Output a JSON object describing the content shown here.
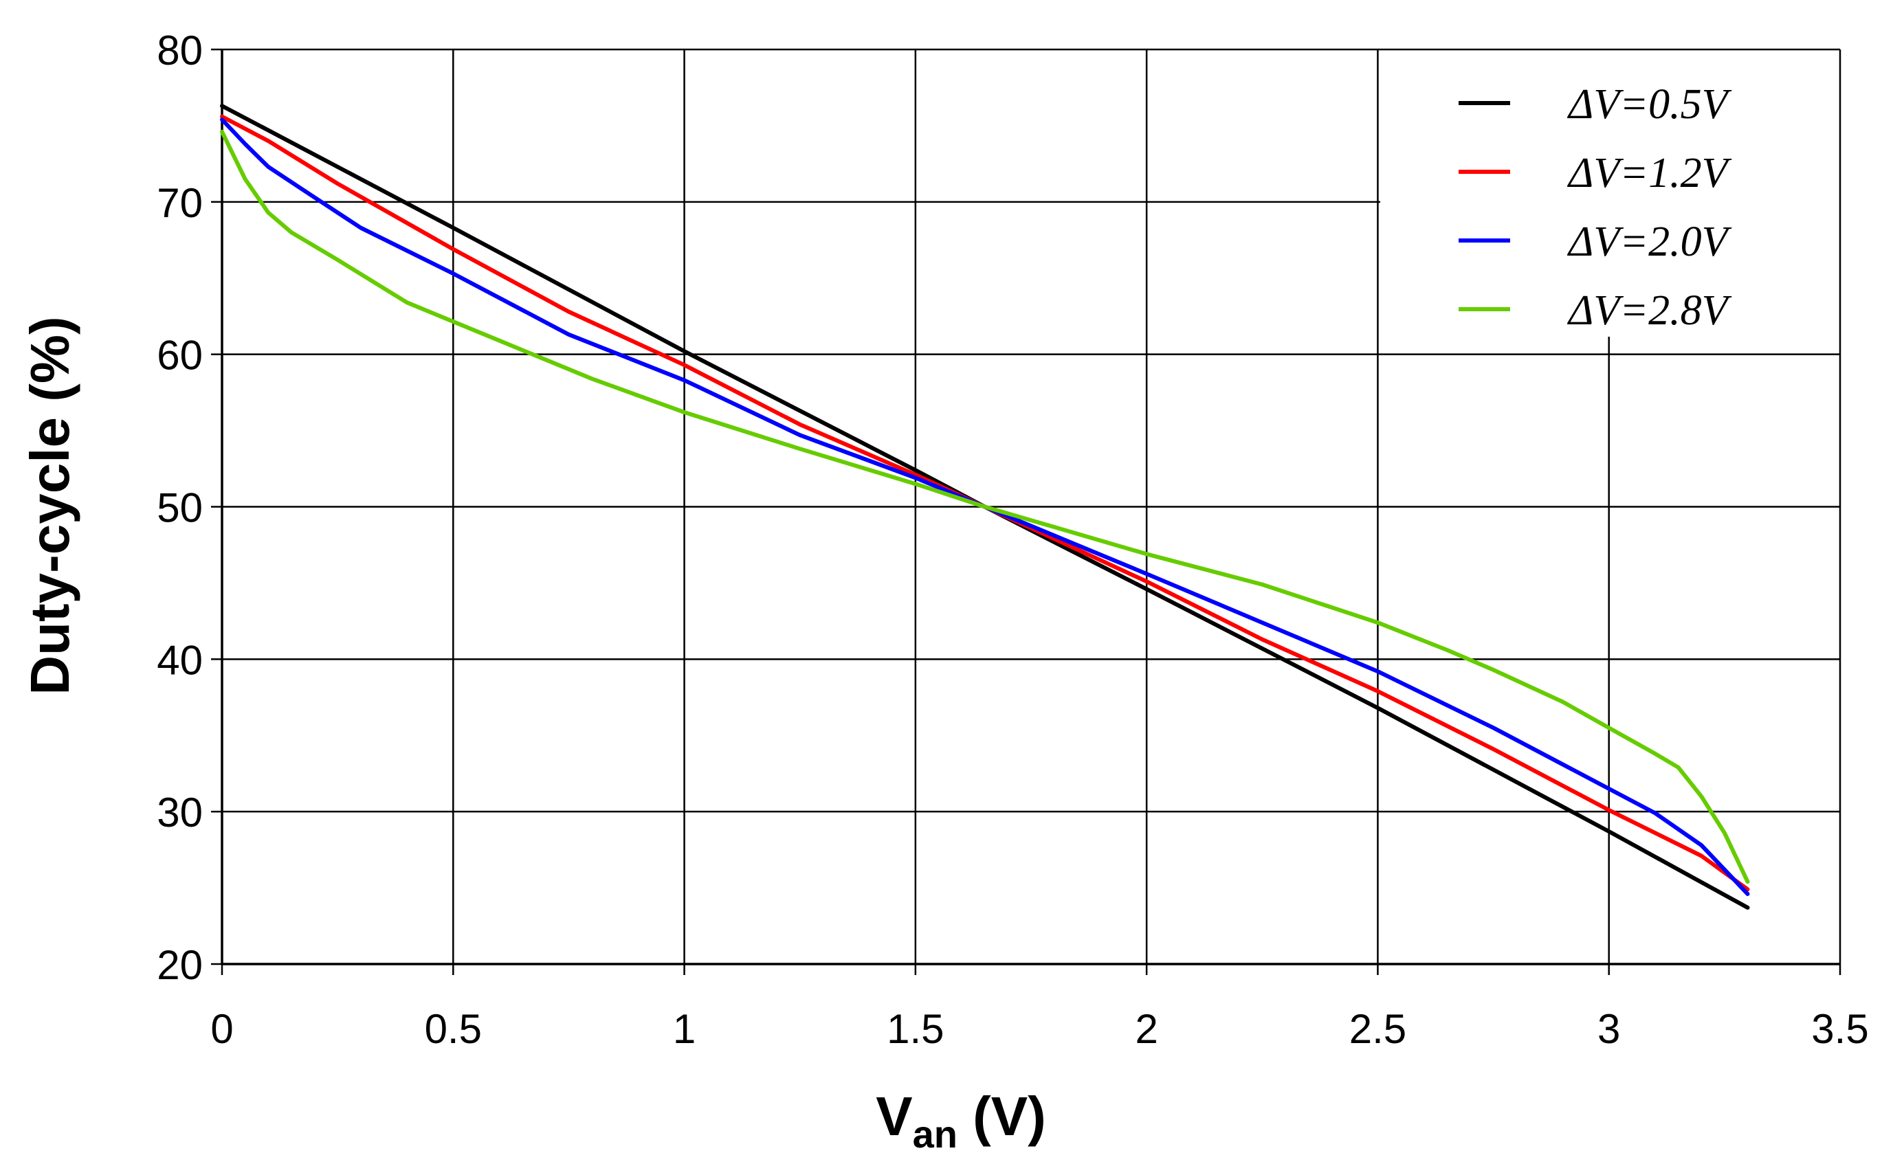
{
  "chart_data": {
    "type": "line",
    "xlabel": "V",
    "xlabel_sub": "an",
    "xlabel_unit": " (V)",
    "ylabel": "Duty-cycle (%)",
    "xlim": [
      0,
      3.5
    ],
    "ylim": [
      20,
      80
    ],
    "xticks": [
      0,
      0.5,
      1,
      1.5,
      2,
      2.5,
      3,
      3.5
    ],
    "xtick_labels": [
      "0",
      "0.5",
      "1",
      "1.5",
      "2",
      "2.5",
      "3",
      "3.5"
    ],
    "yticks": [
      20,
      30,
      40,
      50,
      60,
      70,
      80
    ],
    "ytick_labels": [
      "20",
      "30",
      "40",
      "50",
      "60",
      "70",
      "80"
    ],
    "grid": true,
    "legend_position": "top-right",
    "series": [
      {
        "name": "ΔV=0.5V",
        "color": "#000000",
        "points": [
          [
            0,
            76.3
          ],
          [
            0.5,
            68.3
          ],
          [
            1,
            60.2
          ],
          [
            1.5,
            52.4
          ],
          [
            1.65,
            50
          ],
          [
            2,
            44.6
          ],
          [
            2.5,
            36.8
          ],
          [
            3,
            28.7
          ],
          [
            3.3,
            23.7
          ]
        ]
      },
      {
        "name": "ΔV=1.2V",
        "color": "#ff0000",
        "points": [
          [
            0,
            75.6
          ],
          [
            0.1,
            74.0
          ],
          [
            0.25,
            71.2
          ],
          [
            0.5,
            66.9
          ],
          [
            0.75,
            62.8
          ],
          [
            1,
            59.3
          ],
          [
            1.25,
            55.4
          ],
          [
            1.5,
            52.1
          ],
          [
            1.65,
            50
          ],
          [
            2,
            45.1
          ],
          [
            2.25,
            41.3
          ],
          [
            2.5,
            37.9
          ],
          [
            2.75,
            34.1
          ],
          [
            3,
            30.1
          ],
          [
            3.2,
            27.1
          ],
          [
            3.3,
            24.9
          ]
        ]
      },
      {
        "name": "ΔV=2.0V",
        "color": "#0000ff",
        "points": [
          [
            0,
            75.4
          ],
          [
            0.05,
            73.8
          ],
          [
            0.1,
            72.3
          ],
          [
            0.2,
            70.3
          ],
          [
            0.3,
            68.3
          ],
          [
            0.5,
            65.3
          ],
          [
            0.75,
            61.3
          ],
          [
            1,
            58.3
          ],
          [
            1.25,
            54.7
          ],
          [
            1.5,
            51.9
          ],
          [
            1.65,
            50
          ],
          [
            2,
            45.6
          ],
          [
            2.25,
            42.4
          ],
          [
            2.5,
            39.2
          ],
          [
            2.75,
            35.5
          ],
          [
            3,
            31.5
          ],
          [
            3.1,
            29.9
          ],
          [
            3.2,
            27.8
          ],
          [
            3.3,
            24.6
          ]
        ]
      },
      {
        "name": "ΔV=2.8V",
        "color": "#66cc00",
        "points": [
          [
            0,
            74.6
          ],
          [
            0.05,
            71.5
          ],
          [
            0.1,
            69.3
          ],
          [
            0.15,
            68.0
          ],
          [
            0.25,
            66.2
          ],
          [
            0.4,
            63.4
          ],
          [
            0.6,
            60.9
          ],
          [
            0.8,
            58.4
          ],
          [
            1,
            56.2
          ],
          [
            1.25,
            53.8
          ],
          [
            1.5,
            51.5
          ],
          [
            1.65,
            50
          ],
          [
            2,
            46.9
          ],
          [
            2.25,
            44.9
          ],
          [
            2.5,
            42.4
          ],
          [
            2.65,
            40.6
          ],
          [
            2.75,
            39.3
          ],
          [
            2.9,
            37.2
          ],
          [
            3,
            35.5
          ],
          [
            3.1,
            33.8
          ],
          [
            3.15,
            32.9
          ],
          [
            3.2,
            31.0
          ],
          [
            3.25,
            28.6
          ],
          [
            3.3,
            25.4
          ]
        ]
      }
    ]
  }
}
